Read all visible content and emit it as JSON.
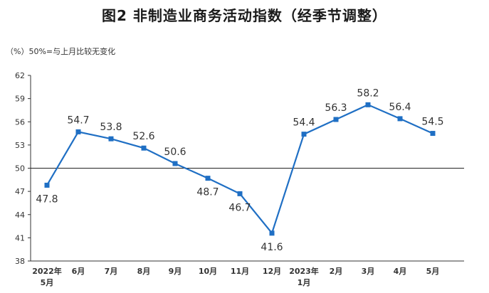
{
  "chart_data": {
    "type": "line",
    "title": "图2 非制造业商务活动指数（经季节调整）",
    "ylabel": "（%）",
    "note": "50%=与上月比较无变化",
    "categories": [
      [
        "2022年",
        "5月"
      ],
      [
        "6月"
      ],
      [
        "7月"
      ],
      [
        "8月"
      ],
      [
        "9月"
      ],
      [
        "10月"
      ],
      [
        "11月"
      ],
      [
        "12月"
      ],
      [
        "2023年",
        "1月"
      ],
      [
        "2月"
      ],
      [
        "3月"
      ],
      [
        "4月"
      ],
      [
        "5月"
      ]
    ],
    "values": [
      47.8,
      54.7,
      53.8,
      52.6,
      50.6,
      48.7,
      46.7,
      41.6,
      54.4,
      56.3,
      58.2,
      56.4,
      54.5
    ],
    "value_labels": [
      "47.8",
      "54.7",
      "53.8",
      "52.6",
      "50.6",
      "48.7",
      "46.7",
      "41.6",
      "54.4",
      "56.3",
      "58.2",
      "56.4",
      "54.5"
    ],
    "yticks": [
      "38",
      "41",
      "44",
      "47",
      "50",
      "53",
      "56",
      "59",
      "62"
    ],
    "ylim": [
      38,
      62
    ],
    "reference_line": 50,
    "grid": false,
    "legend": "none",
    "series_color": "#1f6fc4"
  }
}
